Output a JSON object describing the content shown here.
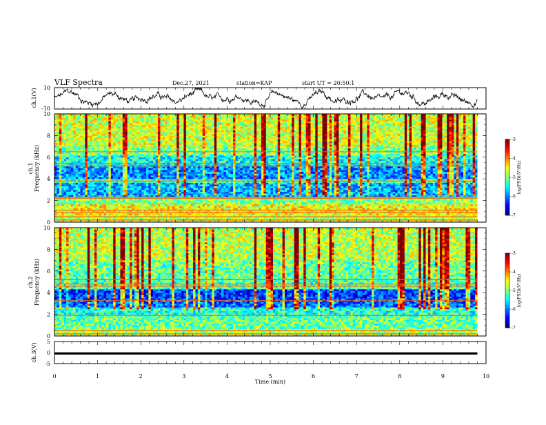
{
  "header": {
    "title": "VLF Spectra",
    "date": "Dec.27, 2021",
    "station": "station=KAP",
    "start": "start UT = 20:50:1"
  },
  "chart_data": [
    {
      "type": "line",
      "id": "ch1-waveform",
      "ylabel": "ch.1(V)",
      "ylim": [
        -10,
        10
      ],
      "yticks": [
        10,
        -10
      ],
      "xlim": [
        0,
        10
      ],
      "series": [
        {
          "style": "noisy waveform",
          "color": "#000000"
        }
      ]
    },
    {
      "type": "heatmap",
      "id": "ch1-spectrogram",
      "ylabel_top": "ch.1",
      "ylabel": "Frequency (kHz)",
      "ylim": [
        0,
        10
      ],
      "yticks": [
        0,
        2,
        4,
        6,
        8,
        10
      ],
      "xlim": [
        0,
        9.8
      ],
      "colorbar": {
        "label": "log(PSD)(V²/Hz)",
        "range": [
          -7,
          -3
        ],
        "ticks": [
          -3,
          -4,
          -5,
          -6,
          -7
        ]
      },
      "bands_khz": [
        0.2,
        0.5,
        0.9,
        1.1,
        2.2,
        2.3,
        3.8,
        5.2,
        5.4,
        6.5
      ]
    },
    {
      "type": "heatmap",
      "id": "ch2-spectrogram",
      "ylabel_top": "ch.2",
      "ylabel": "Frequency (kHz)",
      "ylim": [
        0,
        10
      ],
      "yticks": [
        0,
        2,
        4,
        6,
        8,
        10
      ],
      "xlim": [
        0,
        9.8
      ],
      "colorbar": {
        "label": "log(PSD)(V²/Hz)",
        "range": [
          -7,
          -3
        ],
        "ticks": [
          -3,
          -4,
          -5,
          -6,
          -7
        ]
      },
      "bands_khz": [
        0.2,
        0.5,
        1.9,
        3.3,
        4.6,
        4.8,
        5.2
      ]
    },
    {
      "type": "line",
      "id": "ch3-waveform",
      "ylabel": "ch.3(V)",
      "ylim": [
        -5,
        5
      ],
      "yticks": [
        5,
        0,
        -5
      ],
      "xlim": [
        0,
        10
      ],
      "series": [
        {
          "style": "saturated band",
          "y_band": [
            -0.9,
            0.1
          ],
          "x_range": [
            0,
            9.8
          ],
          "color": "#000000"
        }
      ]
    }
  ],
  "xaxis": {
    "label": "Time (min)",
    "ticks": [
      0,
      1,
      2,
      3,
      4,
      5,
      6,
      7,
      8,
      9,
      10
    ]
  },
  "colors": {
    "axis": "#000000",
    "background": "#ffffff"
  }
}
